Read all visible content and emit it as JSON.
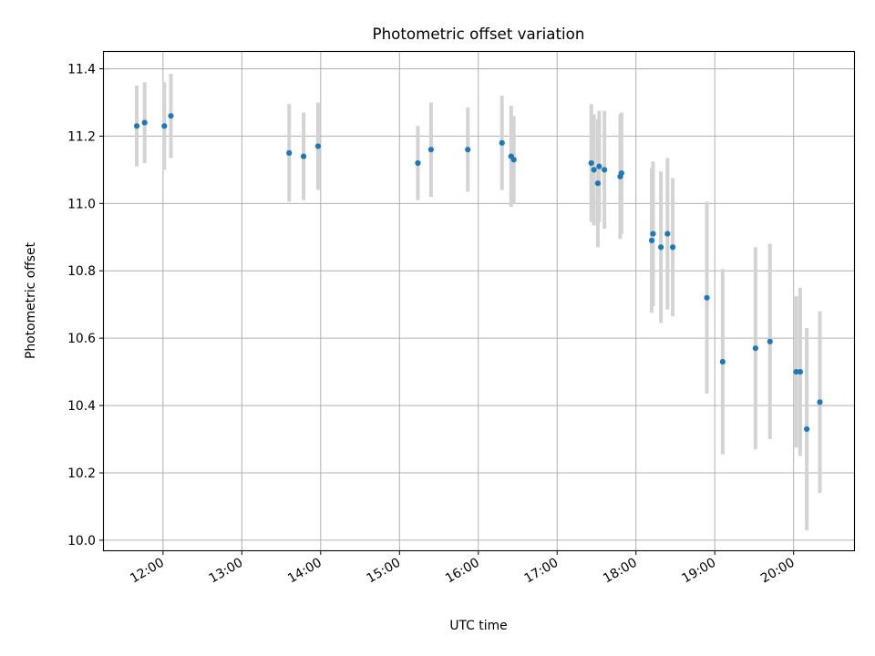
{
  "chart_data": {
    "type": "scatter",
    "title": "Photometric offset variation",
    "xlabel": "UTC time",
    "ylabel": "Photometric offset",
    "grid": true,
    "xlim": [
      "11:15",
      "20:46"
    ],
    "ylim": [
      9.97,
      11.45
    ],
    "xticks": [
      "12:00",
      "13:00",
      "14:00",
      "15:00",
      "16:00",
      "17:00",
      "18:00",
      "19:00",
      "20:00"
    ],
    "yticks": [
      "10.0",
      "10.2",
      "10.4",
      "10.6",
      "10.8",
      "11.0",
      "11.2",
      "11.4"
    ],
    "colors": {
      "point": "#1f77b4",
      "errorbar": "#d3d3d3",
      "grid": "#b0b0b0"
    },
    "series": [
      {
        "points": [
          {
            "t": "11:40",
            "y": 11.23,
            "err": 0.12
          },
          {
            "t": "11:46",
            "y": 11.24,
            "err": 0.12
          },
          {
            "t": "12:01",
            "y": 11.23,
            "err": 0.13
          },
          {
            "t": "12:06",
            "y": 11.26,
            "err": 0.125
          },
          {
            "t": "13:36",
            "y": 11.15,
            "err": 0.145
          },
          {
            "t": "13:47",
            "y": 11.14,
            "err": 0.13
          },
          {
            "t": "13:58",
            "y": 11.17,
            "err": 0.13
          },
          {
            "t": "15:14",
            "y": 11.12,
            "err": 0.11
          },
          {
            "t": "15:24",
            "y": 11.16,
            "err": 0.14
          },
          {
            "t": "15:52",
            "y": 11.16,
            "err": 0.125
          },
          {
            "t": "16:18",
            "y": 11.18,
            "err": 0.14
          },
          {
            "t": "16:25",
            "y": 11.14,
            "err": 0.15
          },
          {
            "t": "16:27",
            "y": 11.13,
            "err": 0.13
          },
          {
            "t": "17:26",
            "y": 11.12,
            "err": 0.175
          },
          {
            "t": "17:28",
            "y": 11.1,
            "err": 0.165
          },
          {
            "t": "17:31",
            "y": 11.06,
            "err": 0.19
          },
          {
            "t": "17:32",
            "y": 11.11,
            "err": 0.165
          },
          {
            "t": "17:36",
            "y": 11.1,
            "err": 0.175
          },
          {
            "t": "17:48",
            "y": 11.08,
            "err": 0.185
          },
          {
            "t": "17:49",
            "y": 11.09,
            "err": 0.18
          },
          {
            "t": "18:12",
            "y": 10.89,
            "err": 0.215
          },
          {
            "t": "18:13",
            "y": 10.91,
            "err": 0.215
          },
          {
            "t": "18:19",
            "y": 10.87,
            "err": 0.225
          },
          {
            "t": "18:24",
            "y": 10.91,
            "err": 0.225
          },
          {
            "t": "18:28",
            "y": 10.87,
            "err": 0.205
          },
          {
            "t": "18:54",
            "y": 10.72,
            "err": 0.285
          },
          {
            "t": "19:06",
            "y": 10.53,
            "err": 0.275
          },
          {
            "t": "19:31",
            "y": 10.57,
            "err": 0.3
          },
          {
            "t": "19:42",
            "y": 10.59,
            "err": 0.29
          },
          {
            "t": "20:02",
            "y": 10.5,
            "err": 0.225
          },
          {
            "t": "20:05",
            "y": 10.5,
            "err": 0.25
          },
          {
            "t": "20:10",
            "y": 10.33,
            "err": 0.3
          },
          {
            "t": "20:20",
            "y": 10.41,
            "err": 0.27
          }
        ]
      }
    ]
  }
}
